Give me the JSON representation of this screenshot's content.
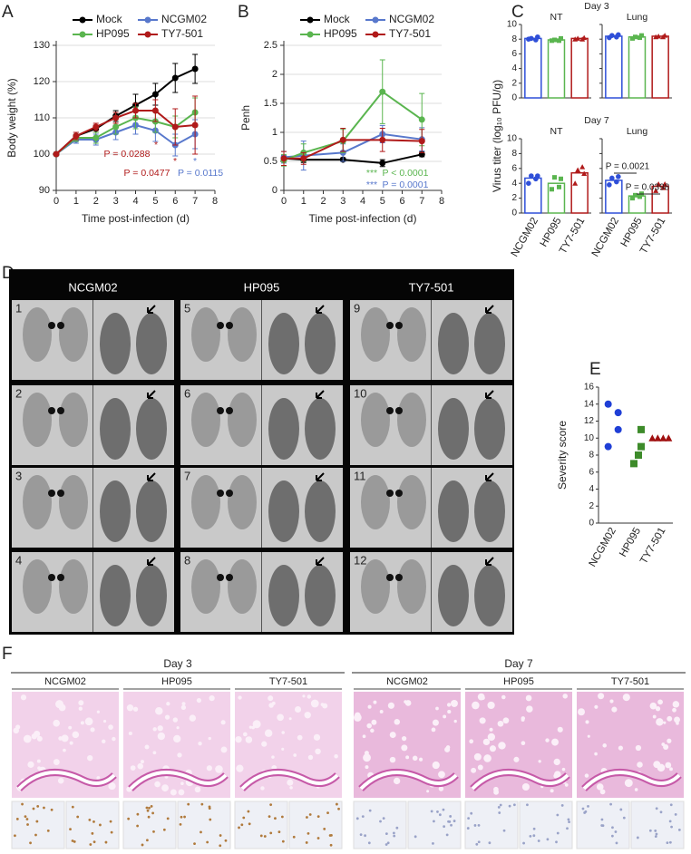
{
  "chart_data": [
    {
      "panel": "A",
      "type": "line",
      "ylabel": "Body weight (%)",
      "xlabel": "Time post-infection (d)",
      "x": [
        0,
        1,
        2,
        3,
        4,
        5,
        6,
        7
      ],
      "xlim": [
        0,
        8
      ],
      "xticks": [
        0,
        1,
        2,
        3,
        4,
        5,
        6,
        7,
        8
      ],
      "ylim": [
        90,
        130
      ],
      "yticks": [
        90,
        100,
        110,
        120,
        130
      ],
      "grid": true,
      "series": [
        {
          "name": "Mock",
          "color": "#000000",
          "values": [
            100,
            105,
            107,
            110.5,
            113.5,
            116.5,
            121,
            123.5
          ],
          "errors": [
            0,
            1,
            1,
            1.5,
            3,
            3,
            4,
            4
          ]
        },
        {
          "name": "NCGM02",
          "color": "#5878cc",
          "values": [
            100,
            104,
            104,
            106,
            108,
            106.5,
            102.5,
            105.5
          ],
          "errors": [
            0,
            1,
            1.5,
            2,
            2.5,
            3,
            3,
            4
          ]
        },
        {
          "name": "HP095",
          "color": "#5ab54f",
          "values": [
            100,
            104.5,
            104.5,
            107.5,
            110,
            109,
            107.5,
            111.5
          ],
          "errors": [
            0,
            1,
            1.5,
            2,
            3,
            3,
            3,
            4
          ]
        },
        {
          "name": "TY7-501",
          "color": "#b01a1a",
          "values": [
            100,
            105,
            107.5,
            110,
            112,
            112,
            107.5,
            108
          ],
          "errors": [
            0,
            1,
            1,
            1.5,
            2,
            3,
            5,
            8
          ]
        }
      ],
      "annotations": [
        {
          "text": "*",
          "color": "#b01a1a"
        },
        {
          "text": "P = 0.0288",
          "color": "#b01a1a"
        },
        {
          "text": "*",
          "color": "#b01a1a"
        },
        {
          "text": "P = 0.0477",
          "color": "#b01a1a"
        },
        {
          "text": "*",
          "color": "#5878cc"
        },
        {
          "text": "P = 0.0115",
          "color": "#5878cc"
        }
      ]
    },
    {
      "panel": "B",
      "type": "line",
      "ylabel": "Penh",
      "xlabel": "Time post-infection (d)",
      "x": [
        0,
        1,
        3,
        5,
        7
      ],
      "xlim": [
        0,
        8
      ],
      "xticks": [
        0,
        1,
        2,
        3,
        4,
        5,
        6,
        7,
        8
      ],
      "ylim": [
        0,
        2.5
      ],
      "yticks": [
        0,
        0.5,
        1,
        1.5,
        2,
        2.5
      ],
      "grid": true,
      "series": [
        {
          "name": "Mock",
          "color": "#000000",
          "values": [
            0.55,
            0.53,
            0.53,
            0.47,
            0.62
          ],
          "errors": [
            0.05,
            0.05,
            0.03,
            0.06,
            0.04
          ]
        },
        {
          "name": "NCGM02",
          "color": "#5878cc",
          "values": [
            0.57,
            0.6,
            0.65,
            0.97,
            0.88
          ],
          "errors": [
            0.1,
            0.25,
            0.15,
            0.15,
            0.2
          ]
        },
        {
          "name": "HP095",
          "color": "#5ab54f",
          "values": [
            0.52,
            0.65,
            0.85,
            1.7,
            1.22
          ],
          "errors": [
            0.1,
            0.15,
            0.2,
            0.55,
            0.45
          ]
        },
        {
          "name": "TY7-501",
          "color": "#b01a1a",
          "values": [
            0.55,
            0.55,
            0.87,
            0.87,
            0.85
          ],
          "errors": [
            0.12,
            0.1,
            0.2,
            0.2,
            0.2
          ]
        }
      ],
      "annotations": [
        {
          "text": "***",
          "color": "#5ab54f"
        },
        {
          "text": "P < 0.0001",
          "color": "#5ab54f"
        },
        {
          "text": "***",
          "color": "#5878cc"
        },
        {
          "text": "P = 0.0001",
          "color": "#5878cc"
        }
      ]
    },
    {
      "panel": "C",
      "type": "bar",
      "ylabel": "Virus titer (log₁₀ PFU/g)",
      "categories": [
        "NCGM02",
        "HP095",
        "TY7-501"
      ],
      "colors": [
        "#2f4fd8",
        "#5ab54f",
        "#b01a1a"
      ],
      "ylim": [
        0,
        10
      ],
      "yticks": [
        0,
        2,
        4,
        6,
        8,
        10
      ],
      "rows": [
        {
          "title": "Day 3",
          "panels": [
            {
              "title": "NT",
              "values": [
                8.1,
                7.9,
                8.1
              ],
              "points": [
                [
                  8.0,
                  8.3,
                  8.1,
                  7.9
                ],
                [
                  7.8,
                  8.1,
                  7.9,
                  7.8
                ],
                [
                  8.0,
                  8.2,
                  8.1,
                  8.0
                ]
              ]
            },
            {
              "title": "Lung",
              "values": [
                8.4,
                8.3,
                8.4
              ],
              "points": [
                [
                  8.2,
                  8.6,
                  8.5,
                  8.3
                ],
                [
                  8.1,
                  8.5,
                  8.3,
                  8.2
                ],
                [
                  8.3,
                  8.5,
                  8.4,
                  8.3
                ]
              ]
            }
          ]
        },
        {
          "title": "Day 7",
          "panels": [
            {
              "title": "NT",
              "values": [
                4.7,
                4.0,
                5.4
              ],
              "points": [
                [
                  4.0,
                  5.0,
                  5.0,
                  4.6
                ],
                [
                  3.2,
                  4.6,
                  4.8,
                  3.5
                ],
                [
                  4.0,
                  5.3,
                  5.8,
                  6.2
                ]
              ]
            },
            {
              "title": "Lung",
              "values": [
                4.4,
                2.3,
                3.6
              ],
              "points": [
                [
                  3.8,
                  4.9,
                  4.7,
                  4.2
                ],
                [
                  2.0,
                  2.6,
                  2.4,
                  2.2
                ],
                [
                  3.0,
                  3.9,
                  3.9,
                  3.4
                ]
              ]
            }
          ]
        }
      ],
      "annotations": [
        {
          "text": "P = 0.0021"
        },
        {
          "text": "P = 0.0398"
        }
      ]
    },
    {
      "panel": "E",
      "type": "scatter",
      "ylabel": "Severity score",
      "categories": [
        "NCGM02",
        "HP095",
        "TY7-501"
      ],
      "colors": [
        "#1f3fd6",
        "#3d8b2a",
        "#a01010"
      ],
      "markers": [
        "circle",
        "square",
        "triangle"
      ],
      "ylim": [
        0,
        16
      ],
      "yticks": [
        0,
        2,
        4,
        6,
        8,
        10,
        12,
        14,
        16
      ],
      "points": [
        [
          14,
          13,
          11,
          9
        ],
        [
          11,
          9,
          8,
          7
        ],
        [
          10,
          10,
          10,
          10
        ]
      ]
    }
  ],
  "ct_panel": {
    "panel": "D",
    "columns": [
      "NCGM02",
      "HP095",
      "TY7-501"
    ],
    "cases": [
      [
        1,
        2,
        3,
        4
      ],
      [
        5,
        6,
        7,
        8
      ],
      [
        9,
        10,
        11,
        12
      ]
    ]
  },
  "histology_panel": {
    "panel": "F",
    "days": [
      {
        "label": "Day 3",
        "columns": [
          "NCGM02",
          "HP095",
          "TY7-501"
        ]
      },
      {
        "label": "Day 7",
        "columns": [
          "NCGM02",
          "HP095",
          "TY7-501"
        ]
      }
    ]
  }
}
